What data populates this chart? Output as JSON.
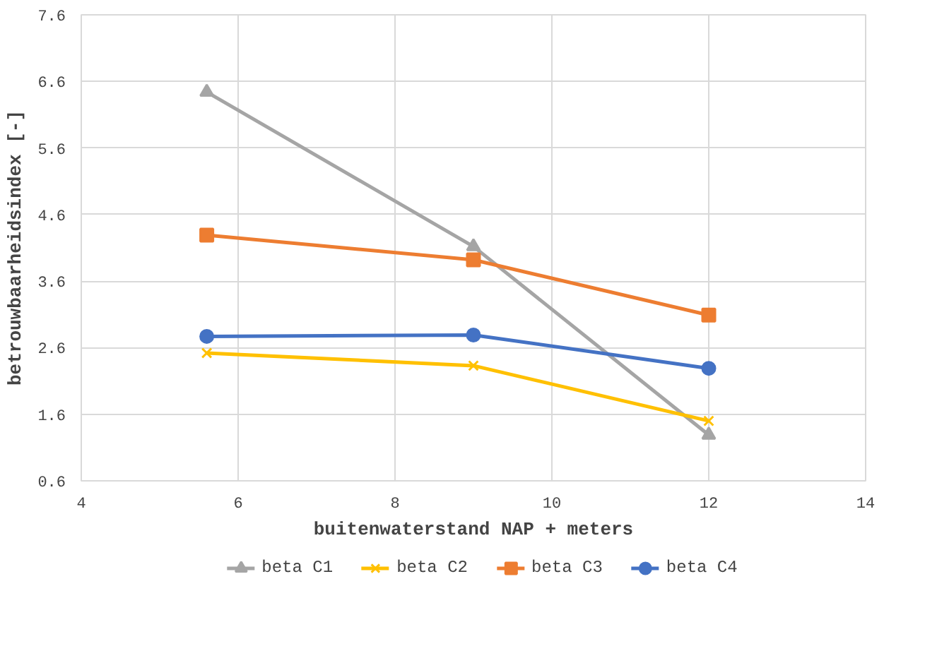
{
  "chart_data": {
    "type": "line",
    "xlabel": "buitenwaterstand NAP + meters",
    "ylabel": "betrouwbaarheidsindex [-]",
    "x": [
      5.6,
      9,
      12
    ],
    "series": [
      {
        "name": "beta C1",
        "color": "#a5a5a5",
        "marker": "triangle",
        "values": [
          6.44,
          4.12,
          1.29
        ]
      },
      {
        "name": "beta C2",
        "color": "#ffc000",
        "marker": "cross",
        "values": [
          2.52,
          2.33,
          1.5
        ]
      },
      {
        "name": "beta C3",
        "color": "#ed7d31",
        "marker": "square",
        "values": [
          4.29,
          3.92,
          3.09
        ]
      },
      {
        "name": "beta C4",
        "color": "#4472c4",
        "marker": "circle",
        "values": [
          2.77,
          2.79,
          2.29
        ]
      }
    ],
    "xlim": [
      4,
      14
    ],
    "xticks": [
      4,
      6,
      8,
      10,
      12,
      14
    ],
    "ylim": [
      0.6,
      7.6
    ],
    "yticks": [
      0.6,
      1.6,
      2.6,
      3.6,
      4.6,
      5.6,
      6.6,
      7.6
    ],
    "grid": true,
    "legend": "bottom",
    "line_style": "solid"
  }
}
